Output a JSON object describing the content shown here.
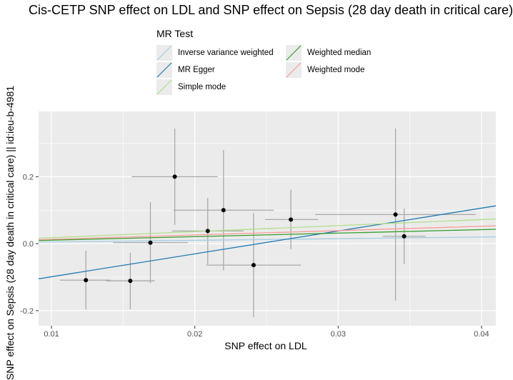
{
  "chart_data": {
    "type": "scatter",
    "title": "Cis-CETP SNP effect on LDL and SNP effect on Sepsis (28 day death in critical care)",
    "xlabel": "SNP effect on LDL",
    "ylabel": "SNP effect on Sepsis (28 day death in critical care) || id:ieu-b-4981",
    "xlim": [
      0.0091,
      0.041
    ],
    "ylim": [
      -0.245,
      0.395
    ],
    "xticks": [
      0.01,
      0.02,
      0.03,
      0.04
    ],
    "xtick_labels": [
      "0.01",
      "0.02",
      "0.03",
      "0.04"
    ],
    "yticks": [
      -0.2,
      0.0,
      0.2
    ],
    "ytick_labels": [
      "-0.2",
      "0.0",
      "0.2"
    ],
    "grid": true,
    "legend": {
      "title": "MR Test",
      "placement": "top",
      "entries": [
        {
          "name": "Inverse variance weighted",
          "color": "#a6cee3"
        },
        {
          "name": "MR Egger",
          "color": "#1f78b4"
        },
        {
          "name": "Simple mode",
          "color": "#b2df8a"
        },
        {
          "name": "Weighted median",
          "color": "#33a02c"
        },
        {
          "name": "Weighted mode",
          "color": "#fb9a99"
        }
      ]
    },
    "points": [
      {
        "x": 0.0124,
        "y": -0.109,
        "x_lo": 0.0106,
        "x_hi": 0.0141,
        "y_lo": -0.197,
        "y_hi": -0.021
      },
      {
        "x": 0.0155,
        "y": -0.111,
        "x_lo": 0.0138,
        "x_hi": 0.0172,
        "y_lo": -0.196,
        "y_hi": -0.027
      },
      {
        "x": 0.0169,
        "y": 0.003,
        "x_lo": 0.0143,
        "x_hi": 0.0195,
        "y_lo": -0.118,
        "y_hi": 0.124
      },
      {
        "x": 0.0186,
        "y": 0.2,
        "x_lo": 0.0156,
        "x_hi": 0.0216,
        "y_lo": 0.056,
        "y_hi": 0.344
      },
      {
        "x": 0.0209,
        "y": 0.038,
        "x_lo": 0.0184,
        "x_hi": 0.0234,
        "y_lo": -0.061,
        "y_hi": 0.137
      },
      {
        "x": 0.022,
        "y": 0.1,
        "x_lo": 0.0185,
        "x_hi": 0.0255,
        "y_lo": -0.08,
        "y_hi": 0.28
      },
      {
        "x": 0.0241,
        "y": -0.064,
        "x_lo": 0.0208,
        "x_hi": 0.0274,
        "y_lo": -0.219,
        "y_hi": 0.091
      },
      {
        "x": 0.0267,
        "y": 0.072,
        "x_lo": 0.0249,
        "x_hi": 0.0286,
        "y_lo": -0.017,
        "y_hi": 0.161
      },
      {
        "x": 0.034,
        "y": 0.087,
        "x_lo": 0.0284,
        "x_hi": 0.0396,
        "y_lo": -0.17,
        "y_hi": 0.344
      },
      {
        "x": 0.0346,
        "y": 0.022,
        "x_lo": 0.0331,
        "x_hi": 0.0361,
        "y_lo": -0.061,
        "y_hi": 0.105
      }
    ],
    "lines": [
      {
        "name": "Inverse variance weighted",
        "intercept": 0.0,
        "slope": 0.5,
        "color": "#a6cee3"
      },
      {
        "name": "MR Egger",
        "intercept": -0.167,
        "slope": 6.83,
        "color": "#1f78b4"
      },
      {
        "name": "Simple mode",
        "intercept": 0.0,
        "slope": 1.8,
        "color": "#b2df8a"
      },
      {
        "name": "Weighted median",
        "intercept": 0.0,
        "slope": 1.05,
        "color": "#33a02c"
      },
      {
        "name": "Weighted mode",
        "intercept": 0.0,
        "slope": 1.3,
        "color": "#fb9a99"
      }
    ]
  }
}
